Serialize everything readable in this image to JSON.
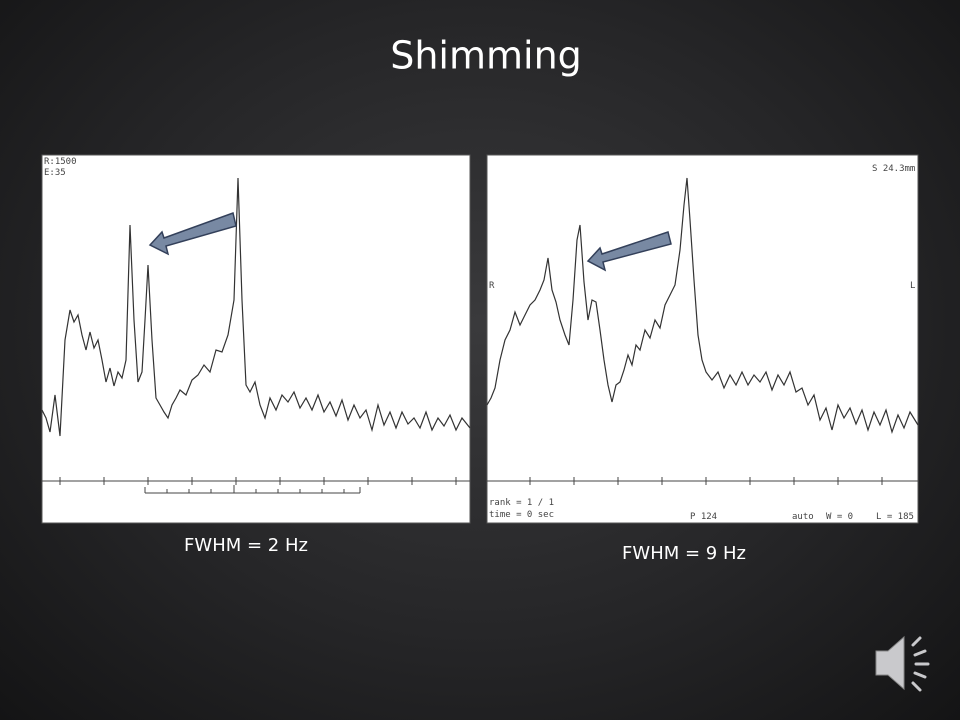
{
  "slide": {
    "title": "Shimming",
    "panels": [
      {
        "caption": "FWHM = 2 Hz",
        "texts": [
          "R:1500",
          "E:35"
        ]
      },
      {
        "caption": "FWHM = 9 Hz",
        "texts": [
          "rank = 1 / 1",
          "time = 0 sec",
          "P 124",
          "auto",
          "W = 0",
          "L = 185",
          "S 24.3mm",
          "R",
          "L"
        ]
      }
    ]
  }
}
